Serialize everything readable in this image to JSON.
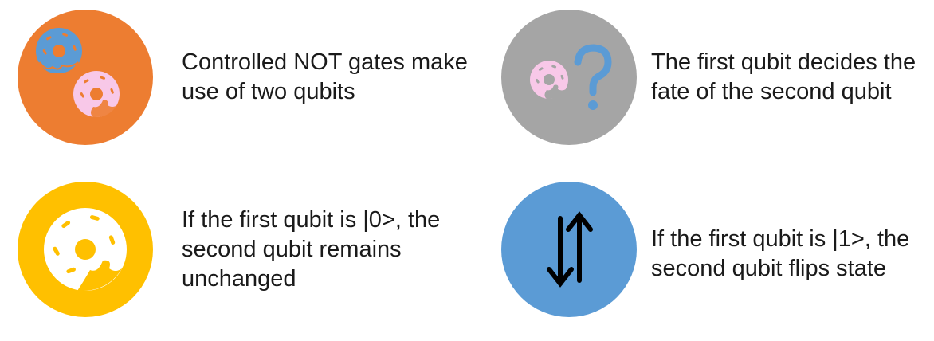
{
  "items": [
    {
      "text": "Controlled NOT gates make\nuse of two qubits",
      "icon": "two-donuts-icon",
      "circle_color": "#ED7D31"
    },
    {
      "text": "The first qubit decides the\nfate of the second qubit",
      "icon": "donut-question-icon",
      "circle_color": "#A5A5A5"
    },
    {
      "text": "If the first qubit is |0>, the\nsecond qubit remains\nunchanged",
      "icon": "donut-icon",
      "circle_color": "#FFC000"
    },
    {
      "text": "If the first qubit is |1>, the\nsecond qubit flips state",
      "icon": "up-down-arrows-icon",
      "circle_color": "#5B9BD5"
    }
  ],
  "colors": {
    "donut_blue": "#5B9BD5",
    "donut_pink": "#F8C8E8",
    "text": "#1a1a1a"
  }
}
